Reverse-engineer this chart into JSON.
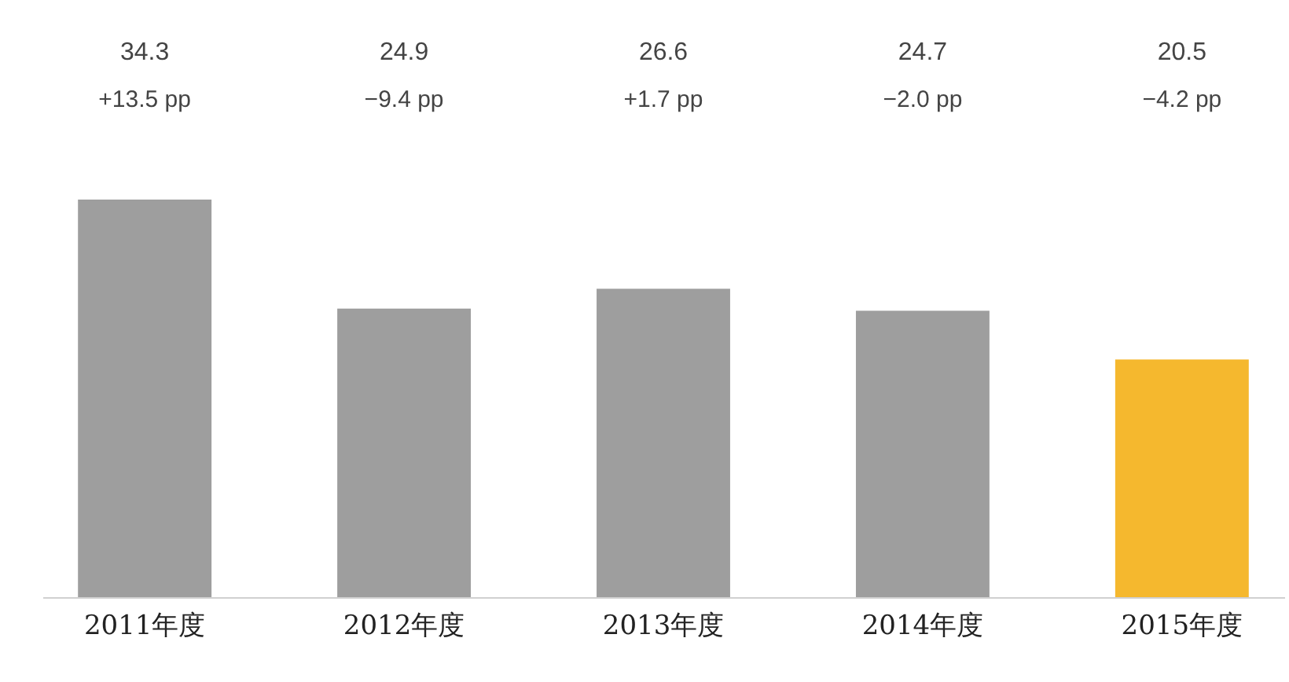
{
  "chart_data": {
    "type": "bar",
    "categories": [
      "2011年度",
      "2012年度",
      "2013年度",
      "2014年度",
      "2015年度"
    ],
    "values": [
      34.3,
      24.9,
      26.6,
      24.7,
      20.5
    ],
    "colors": [
      "#9e9e9e",
      "#9e9e9e",
      "#9e9e9e",
      "#9e9e9e",
      "#f5b82e"
    ],
    "data_labels": true,
    "annotations": [
      "+13.5 pp",
      "−9.4 pp",
      "+1.7 pp",
      "−2.0 pp",
      "−4.2 pp"
    ]
  }
}
